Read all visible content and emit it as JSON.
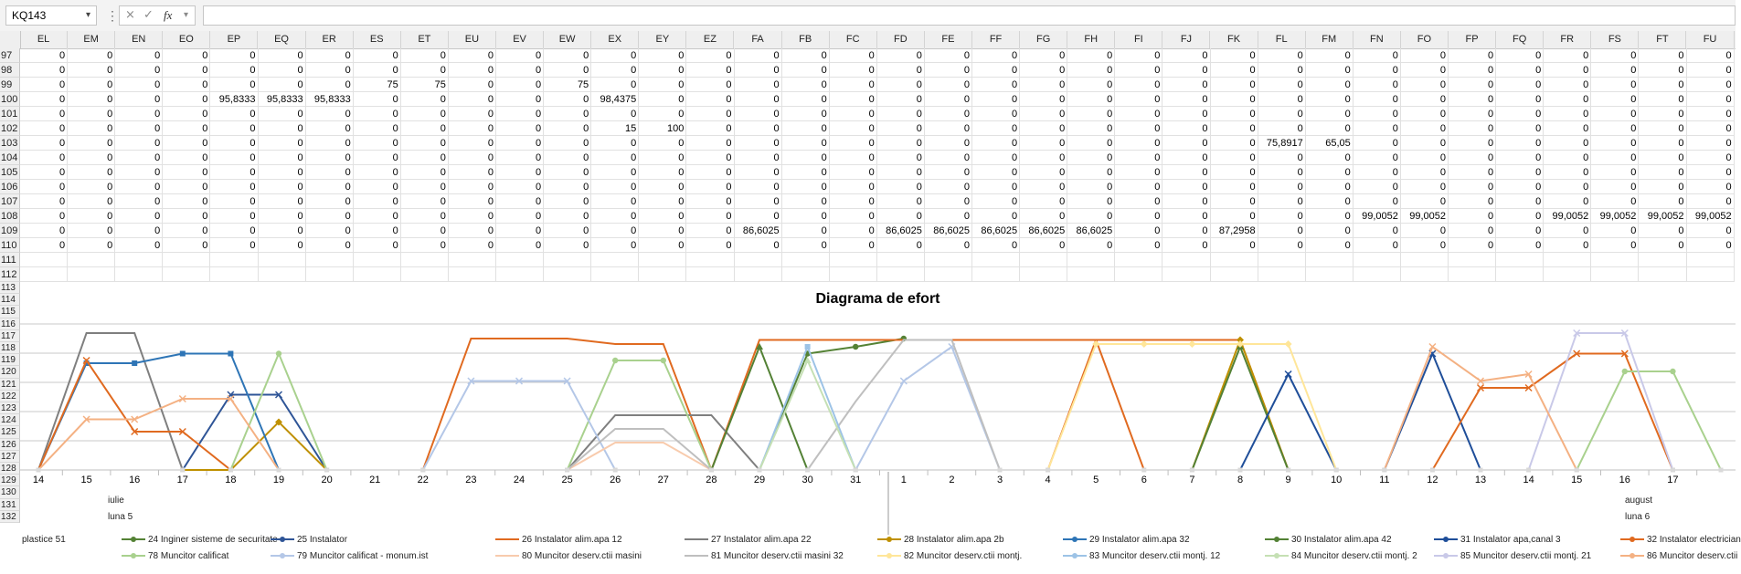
{
  "namebox": {
    "value": "KQ143"
  },
  "formula_bar": {
    "cancel_icon": "×",
    "enter_icon": "✓",
    "fx_label": "fx",
    "value": ""
  },
  "columns": [
    "EL",
    "EM",
    "EN",
    "EO",
    "EP",
    "EQ",
    "ER",
    "ES",
    "ET",
    "EU",
    "EV",
    "EW",
    "EX",
    "EY",
    "EZ",
    "FA",
    "FB",
    "FC",
    "FD",
    "FE",
    "FF",
    "FG",
    "FH",
    "FI",
    "FJ",
    "FK",
    "FL",
    "FM",
    "FN",
    "FO",
    "FP",
    "FQ",
    "FR",
    "FS",
    "FT",
    "FU"
  ],
  "rows": [
    {
      "num": "97",
      "cells": [
        "0",
        "0",
        "0",
        "0",
        "0",
        "0",
        "0",
        "0",
        "0",
        "0",
        "0",
        "0",
        "0",
        "0",
        "0",
        "0",
        "0",
        "0",
        "0",
        "0",
        "0",
        "0",
        "0",
        "0",
        "0",
        "0",
        "0",
        "0",
        "0",
        "0",
        "0",
        "0",
        "0",
        "0",
        "0",
        "0"
      ]
    },
    {
      "num": "98",
      "cells": [
        "0",
        "0",
        "0",
        "0",
        "0",
        "0",
        "0",
        "0",
        "0",
        "0",
        "0",
        "0",
        "0",
        "0",
        "0",
        "0",
        "0",
        "0",
        "0",
        "0",
        "0",
        "0",
        "0",
        "0",
        "0",
        "0",
        "0",
        "0",
        "0",
        "0",
        "0",
        "0",
        "0",
        "0",
        "0",
        "0"
      ]
    },
    {
      "num": "99",
      "cells": [
        "0",
        "0",
        "0",
        "0",
        "0",
        "0",
        "0",
        "75",
        "75",
        "0",
        "0",
        "75",
        "0",
        "0",
        "0",
        "0",
        "0",
        "0",
        "0",
        "0",
        "0",
        "0",
        "0",
        "0",
        "0",
        "0",
        "0",
        "0",
        "0",
        "0",
        "0",
        "0",
        "0",
        "0",
        "0",
        "0"
      ]
    },
    {
      "num": "100",
      "cells": [
        "0",
        "0",
        "0",
        "0",
        "95,8333",
        "95,8333",
        "95,8333",
        "0",
        "0",
        "0",
        "0",
        "0",
        "98,4375",
        "0",
        "0",
        "0",
        "0",
        "0",
        "0",
        "0",
        "0",
        "0",
        "0",
        "0",
        "0",
        "0",
        "0",
        "0",
        "0",
        "0",
        "0",
        "0",
        "0",
        "0",
        "0",
        "0"
      ]
    },
    {
      "num": "101",
      "cells": [
        "0",
        "0",
        "0",
        "0",
        "0",
        "0",
        "0",
        "0",
        "0",
        "0",
        "0",
        "0",
        "0",
        "0",
        "0",
        "0",
        "0",
        "0",
        "0",
        "0",
        "0",
        "0",
        "0",
        "0",
        "0",
        "0",
        "0",
        "0",
        "0",
        "0",
        "0",
        "0",
        "0",
        "0",
        "0",
        "0"
      ]
    },
    {
      "num": "102",
      "cells": [
        "0",
        "0",
        "0",
        "0",
        "0",
        "0",
        "0",
        "0",
        "0",
        "0",
        "0",
        "0",
        "15",
        "100",
        "0",
        "0",
        "0",
        "0",
        "0",
        "0",
        "0",
        "0",
        "0",
        "0",
        "0",
        "0",
        "0",
        "0",
        "0",
        "0",
        "0",
        "0",
        "0",
        "0",
        "0",
        "0"
      ]
    },
    {
      "num": "103",
      "cells": [
        "0",
        "0",
        "0",
        "0",
        "0",
        "0",
        "0",
        "0",
        "0",
        "0",
        "0",
        "0",
        "0",
        "0",
        "0",
        "0",
        "0",
        "0",
        "0",
        "0",
        "0",
        "0",
        "0",
        "0",
        "0",
        "0",
        "75,8917",
        "65,05",
        "0",
        "0",
        "0",
        "0",
        "0",
        "0",
        "0",
        "0"
      ]
    },
    {
      "num": "104",
      "cells": [
        "0",
        "0",
        "0",
        "0",
        "0",
        "0",
        "0",
        "0",
        "0",
        "0",
        "0",
        "0",
        "0",
        "0",
        "0",
        "0",
        "0",
        "0",
        "0",
        "0",
        "0",
        "0",
        "0",
        "0",
        "0",
        "0",
        "0",
        "0",
        "0",
        "0",
        "0",
        "0",
        "0",
        "0",
        "0",
        "0"
      ]
    },
    {
      "num": "105",
      "cells": [
        "0",
        "0",
        "0",
        "0",
        "0",
        "0",
        "0",
        "0",
        "0",
        "0",
        "0",
        "0",
        "0",
        "0",
        "0",
        "0",
        "0",
        "0",
        "0",
        "0",
        "0",
        "0",
        "0",
        "0",
        "0",
        "0",
        "0",
        "0",
        "0",
        "0",
        "0",
        "0",
        "0",
        "0",
        "0",
        "0"
      ]
    },
    {
      "num": "106",
      "cells": [
        "0",
        "0",
        "0",
        "0",
        "0",
        "0",
        "0",
        "0",
        "0",
        "0",
        "0",
        "0",
        "0",
        "0",
        "0",
        "0",
        "0",
        "0",
        "0",
        "0",
        "0",
        "0",
        "0",
        "0",
        "0",
        "0",
        "0",
        "0",
        "0",
        "0",
        "0",
        "0",
        "0",
        "0",
        "0",
        "0"
      ]
    },
    {
      "num": "107",
      "cells": [
        "0",
        "0",
        "0",
        "0",
        "0",
        "0",
        "0",
        "0",
        "0",
        "0",
        "0",
        "0",
        "0",
        "0",
        "0",
        "0",
        "0",
        "0",
        "0",
        "0",
        "0",
        "0",
        "0",
        "0",
        "0",
        "0",
        "0",
        "0",
        "0",
        "0",
        "0",
        "0",
        "0",
        "0",
        "0",
        "0"
      ]
    },
    {
      "num": "108",
      "cells": [
        "0",
        "0",
        "0",
        "0",
        "0",
        "0",
        "0",
        "0",
        "0",
        "0",
        "0",
        "0",
        "0",
        "0",
        "0",
        "0",
        "0",
        "0",
        "0",
        "0",
        "0",
        "0",
        "0",
        "0",
        "0",
        "0",
        "0",
        "0",
        "99,0052",
        "99,0052",
        "0",
        "0",
        "99,0052",
        "99,0052",
        "99,0052",
        "99,0052"
      ]
    },
    {
      "num": "109",
      "cells": [
        "0",
        "0",
        "0",
        "0",
        "0",
        "0",
        "0",
        "0",
        "0",
        "0",
        "0",
        "0",
        "0",
        "0",
        "0",
        "86,6025",
        "0",
        "0",
        "86,6025",
        "86,6025",
        "86,6025",
        "86,6025",
        "86,6025",
        "0",
        "0",
        "87,2958",
        "0",
        "0",
        "0",
        "0",
        "0",
        "0",
        "0",
        "0",
        "0",
        "0"
      ]
    },
    {
      "num": "110",
      "cells": [
        "0",
        "0",
        "0",
        "0",
        "0",
        "0",
        "0",
        "0",
        "0",
        "0",
        "0",
        "0",
        "0",
        "0",
        "0",
        "0",
        "0",
        "0",
        "0",
        "0",
        "0",
        "0",
        "0",
        "0",
        "0",
        "0",
        "0",
        "0",
        "0",
        "0",
        "0",
        "0",
        "0",
        "0",
        "0",
        "0"
      ]
    },
    {
      "num": "111",
      "cells": []
    },
    {
      "num": "112",
      "cells": []
    }
  ],
  "chart_rows": [
    "113",
    "114",
    "115",
    "116",
    "117",
    "118",
    "119",
    "120",
    "121",
    "122",
    "123",
    "124",
    "125",
    "126",
    "127",
    "128",
    "129",
    "130",
    "131",
    "132"
  ],
  "chart_data": {
    "type": "line",
    "title": "Diagrama de efort",
    "xlabel": "",
    "ylabel": "",
    "categories": [
      "14",
      "15",
      "16",
      "17",
      "18",
      "19",
      "20",
      "21",
      "22",
      "23",
      "24",
      "25",
      "26",
      "27",
      "28",
      "29",
      "30",
      "31",
      "1",
      "2",
      "3",
      "4",
      "5",
      "6",
      "7",
      "8",
      "9",
      "10",
      "11",
      "12",
      "13",
      "14",
      "15",
      "16",
      "17"
    ],
    "month_labels": [
      {
        "text": "iulie",
        "at": "16"
      },
      {
        "text": "luna 5",
        "at": "16"
      },
      {
        "text": "august",
        "at": "16"
      },
      {
        "text": "luna 6",
        "at": "16"
      }
    ],
    "ylim": [
      0,
      100
    ],
    "series": [
      {
        "name": "24 Inginer sisteme de securitate",
        "color": "#548235",
        "marker": "circle",
        "segments": [
          {
            "x0": 15,
            "values": [
              0,
              85,
              90,
              96
            ]
          }
        ]
      },
      {
        "name": "25 Instalator",
        "color": "#2f5597",
        "marker": "plus",
        "segments": [
          {
            "x0": 3,
            "values": [
              0,
              55,
              55,
              0
            ]
          }
        ]
      },
      {
        "name": "26 Instalator alim.apa 12",
        "color": "#e06a20",
        "marker": "none",
        "segments": [
          {
            "x0": 8,
            "values": [
              0,
              96,
              96,
              96,
              92,
              92,
              0
            ]
          },
          {
            "x0": 14,
            "values": [
              0,
              95,
              95,
              95,
              95,
              95,
              95,
              95,
              95,
              0
            ]
          },
          {
            "x0": 21,
            "values": [
              0,
              95,
              95,
              95,
              95,
              0
            ]
          }
        ]
      },
      {
        "name": "27 Instalator alim.apa 22",
        "color": "#7f7f7f",
        "marker": "none",
        "segments": [
          {
            "x0": 0,
            "values": [
              0,
              100,
              100,
              0
            ]
          },
          {
            "x0": 11,
            "values": [
              0,
              40,
              40,
              40,
              0
            ]
          }
        ]
      },
      {
        "name": "28 Instalator alim.apa 2b",
        "color": "#bf9000",
        "marker": "diamond",
        "segments": [
          {
            "x0": 3,
            "values": [
              0,
              0,
              35,
              0
            ]
          },
          {
            "x0": 24,
            "values": [
              0,
              95,
              0
            ]
          }
        ]
      },
      {
        "name": "29 Instalator alim.apa 32",
        "color": "#2e75b6",
        "marker": "square",
        "segments": [
          {
            "x0": 0,
            "values": [
              0,
              78,
              78,
              85,
              85,
              0
            ]
          }
        ]
      },
      {
        "name": "30 Instalator alim.apa 42",
        "color": "#538135",
        "marker": "triangle",
        "segments": [
          {
            "x0": 24,
            "values": [
              0,
              90,
              0
            ]
          },
          {
            "x0": 14,
            "values": [
              0,
              90,
              0
            ]
          }
        ]
      },
      {
        "name": "31 Instalator apa,canal 3",
        "color": "#1f4e99",
        "marker": "x",
        "segments": [
          {
            "x0": 25,
            "values": [
              0,
              70,
              0
            ]
          },
          {
            "x0": 28,
            "values": [
              0,
              85,
              0
            ]
          }
        ]
      },
      {
        "name": "32 Instalator electrician",
        "color": "#e06a20",
        "marker": "star",
        "segments": [
          {
            "x0": 0,
            "values": [
              0,
              80,
              28,
              28,
              0
            ]
          },
          {
            "x0": 29,
            "values": [
              0,
              60,
              60,
              85,
              85,
              0
            ]
          }
        ]
      },
      {
        "name": "78 Muncitor calificat",
        "color": "#a9d18e",
        "marker": "circle",
        "segments": [
          {
            "x0": 4,
            "values": [
              0,
              85,
              0
            ]
          },
          {
            "x0": 11,
            "values": [
              0,
              80,
              80,
              0
            ]
          },
          {
            "x0": 32,
            "values": [
              0,
              72,
              72,
              0
            ]
          }
        ]
      },
      {
        "name": "79 Muncitor calificat - monum.ist",
        "color": "#b4c7e7",
        "marker": "x",
        "segments": [
          {
            "x0": 8,
            "values": [
              0,
              65,
              65,
              65,
              0
            ]
          },
          {
            "x0": 17,
            "values": [
              0,
              65,
              90,
              0
            ]
          }
        ]
      },
      {
        "name": "80 Muncitor deserv.ctii masini",
        "color": "#f8cbad",
        "marker": "none",
        "segments": [
          {
            "x0": 11,
            "values": [
              0,
              20,
              20,
              0
            ]
          }
        ]
      },
      {
        "name": "81 Muncitor deserv.ctii masini 32",
        "color": "#bfbfbf",
        "marker": "none",
        "segments": [
          {
            "x0": 11,
            "values": [
              0,
              30,
              30,
              0
            ]
          },
          {
            "x0": 16,
            "values": [
              0,
              50,
              95,
              95,
              0
            ]
          }
        ]
      },
      {
        "name": "82 Muncitor deserv.ctii montj.",
        "color": "#ffe699",
        "marker": "diamond",
        "segments": [
          {
            "x0": 21,
            "values": [
              0,
              92,
              92,
              92,
              92,
              92,
              0
            ]
          }
        ]
      },
      {
        "name": "83 Muncitor deserv.ctii montj. 12",
        "color": "#9dc3e6",
        "marker": "square",
        "segments": [
          {
            "x0": 15,
            "values": [
              0,
              90,
              0
            ]
          }
        ]
      },
      {
        "name": "84 Muncitor deserv.ctii montj. 2",
        "color": "#c5e0b4",
        "marker": "triangle",
        "segments": [
          {
            "x0": 15,
            "values": [
              0,
              80,
              0
            ]
          }
        ]
      },
      {
        "name": "85 Muncitor deserv.ctii montj. 21",
        "color": "#c9c9e8",
        "marker": "x",
        "segments": [
          {
            "x0": 31,
            "values": [
              0,
              100,
              100,
              0
            ]
          }
        ]
      },
      {
        "name": "86 Muncitor deserv.ctii",
        "color": "#f4b183",
        "marker": "x",
        "segments": [
          {
            "x0": 0,
            "values": [
              0,
              37,
              37,
              52,
              52,
              0
            ]
          },
          {
            "x0": 28,
            "values": [
              0,
              90,
              65,
              70,
              0
            ]
          }
        ]
      }
    ],
    "legend_position": "bottom",
    "legend_prefix": "plastice 51"
  }
}
